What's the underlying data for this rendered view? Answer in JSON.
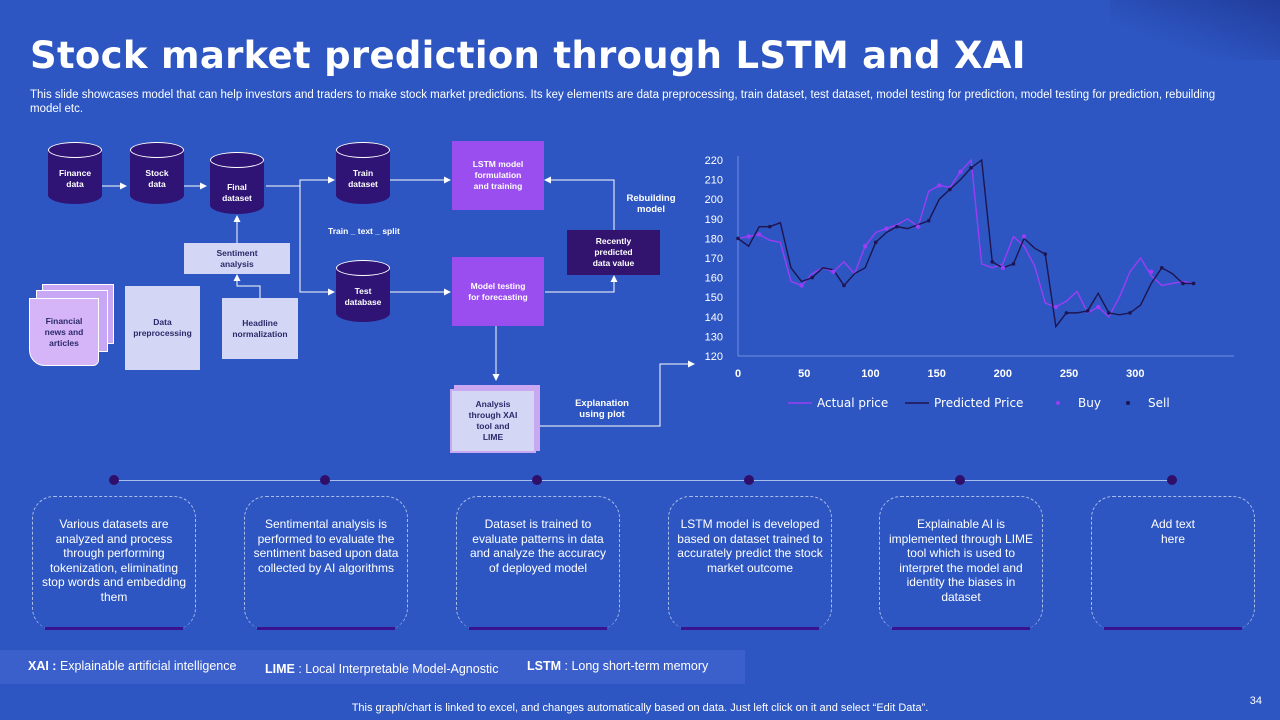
{
  "slide": {
    "title": "Stock market prediction through LSTM and XAI",
    "subtitle": "This slide showcases model that can help investors and traders to make stock market predictions. Its key elements are data preprocessing, train dataset, test dataset, model testing for prediction, model testing for prediction, rebuilding model etc.",
    "page_number": "34",
    "footer": "This graph/chart is linked to excel, and changes automatically based on data. Just left click on it and select “Edit Data”."
  },
  "flow": {
    "finance_data": "Finance data",
    "stock_data": "Stock data",
    "final_dataset": "Final dataset",
    "train_dataset": "Train dataset",
    "test_database": "Test database",
    "lstm_training": "LSTM model formulation and training",
    "model_testing": "Model testing for forecasting",
    "recently_predicted": "Recently predicted data value",
    "rebuilding_model": "Rebuilding model",
    "train_test_split": "Train _ text _ split",
    "sentiment_analysis": "Sentiment analysis",
    "headline_normalization": "Headline normalization",
    "data_preprocessing": "Data preprocessing",
    "financial_news": "Financial news and articles",
    "analysis_xai": "Analysis through XAI tool and LIME",
    "explanation_plot": "Explanation using plot"
  },
  "chart_data": {
    "type": "line",
    "title": "",
    "xlabel": "",
    "ylabel": "",
    "xlim": [
      0,
      370
    ],
    "ylim": [
      120,
      220
    ],
    "x_ticks": [
      0,
      50,
      100,
      150,
      200,
      250,
      300
    ],
    "y_ticks": [
      120,
      130,
      140,
      150,
      160,
      170,
      180,
      190,
      200,
      210,
      220
    ],
    "grid": false,
    "legend_position": "bottom",
    "legend": [
      "Actual price",
      "Predicted Price",
      "Buy",
      "Sell"
    ],
    "series": [
      {
        "name": "Actual price",
        "x": [
          0,
          8,
          16,
          24,
          32,
          40,
          48,
          56,
          64,
          72,
          80,
          88,
          96,
          104,
          112,
          120,
          128,
          136,
          144,
          152,
          160,
          168,
          176,
          184,
          192,
          200,
          208,
          216,
          224,
          232,
          240,
          248,
          256,
          264,
          272,
          280,
          288,
          296,
          304,
          312,
          320,
          328,
          336,
          344
        ],
        "y": [
          180,
          181,
          182,
          179,
          178,
          158,
          156,
          162,
          165,
          163,
          168,
          162,
          176,
          183,
          185,
          187,
          190,
          186,
          204,
          207,
          206,
          214,
          220,
          167,
          165,
          167,
          181,
          176,
          166,
          147,
          145,
          148,
          153,
          142,
          145,
          140,
          150,
          163,
          170,
          161,
          156,
          157,
          158,
          157
        ],
        "color": "#9b3df7"
      },
      {
        "name": "Predicted Price",
        "x": [
          0,
          8,
          16,
          24,
          32,
          40,
          48,
          56,
          64,
          72,
          80,
          88,
          96,
          104,
          112,
          120,
          128,
          136,
          144,
          152,
          160,
          168,
          176,
          184,
          192,
          200,
          208,
          216,
          224,
          232,
          240,
          248,
          256,
          264,
          272,
          280,
          288,
          296,
          304,
          312,
          320,
          328,
          336,
          344
        ],
        "y": [
          180,
          176,
          186,
          186,
          188,
          165,
          158,
          160,
          165,
          164,
          156,
          162,
          165,
          178,
          183,
          186,
          185,
          187,
          189,
          200,
          205,
          210,
          216,
          220,
          168,
          165,
          167,
          180,
          175,
          172,
          135,
          142,
          142,
          143,
          152,
          142,
          141,
          142,
          146,
          157,
          165,
          162,
          157,
          157
        ],
        "color": "#1e1450"
      }
    ],
    "buy": {
      "x": [
        8,
        16,
        48,
        72,
        96,
        112,
        136,
        152,
        168,
        200,
        216,
        240,
        272,
        312
      ],
      "y": [
        181,
        182,
        156,
        163,
        176,
        185,
        186,
        207,
        214,
        165,
        181,
        145,
        145,
        163
      ],
      "color": "#9b3df7"
    },
    "sell": {
      "x": [
        0,
        24,
        56,
        80,
        104,
        120,
        144,
        160,
        176,
        192,
        208,
        232,
        248,
        264,
        280,
        296,
        320,
        336,
        344
      ],
      "y": [
        180,
        186,
        160,
        156,
        178,
        186,
        189,
        205,
        216,
        168,
        167,
        172,
        142,
        143,
        142,
        142,
        165,
        157,
        157
      ],
      "color": "#1e1450"
    }
  },
  "timeline": [
    {
      "text": "Various datasets are analyzed and process through performing tokenization, eliminating stop words and embedding them"
    },
    {
      "text": "Sentimental analysis is performed to evaluate the sentiment based upon data collected by AI algorithms"
    },
    {
      "text": "Dataset is trained to evaluate patterns in data and analyze the accuracy of deployed model"
    },
    {
      "text": "LSTM model is developed based on dataset trained to accurately predict the stock market outcome"
    },
    {
      "text": "Explainable AI is implemented through LIME tool which is used to interpret the model and identity the biases in dataset"
    },
    {
      "text": "Add text here"
    }
  ],
  "legend_bar": {
    "xai_key": "XAI :",
    "xai_value": " Explainable artificial intelligence",
    "lime_key": "LIME",
    "lime_value": " : Local Interpretable Model-Agnostic",
    "lstm_key": "LSTM",
    "lstm_value": " : Long short-term memory"
  }
}
